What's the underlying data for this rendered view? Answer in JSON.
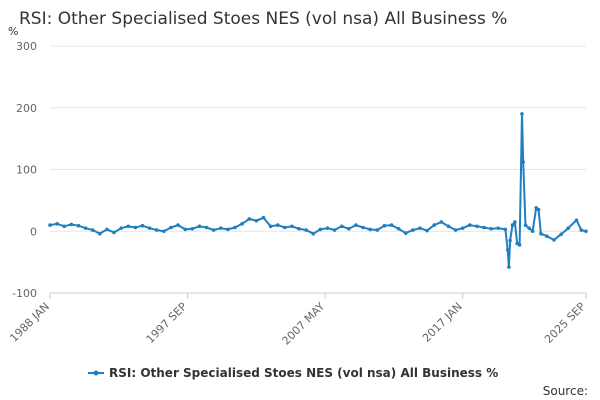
{
  "chart_data": {
    "type": "line",
    "title": "RSI: Other Specialised Stoes NES (vol nsa) All Business %",
    "unit_label": "%",
    "xlabel": "",
    "ylabel": "",
    "ylim": [
      -100,
      300
    ],
    "y_ticks": [
      -100,
      0,
      100,
      200,
      300
    ],
    "x_tick_labels": [
      "1988 JAN",
      "1997 SEP",
      "2007 MAY",
      "2017 JAN",
      "2025 SEP"
    ],
    "x_range": [
      "1988 JAN",
      "2025 SEP"
    ],
    "grid": "horizontal",
    "legend_position": "bottom",
    "series_color": "#1f7fbf",
    "source_text": "Source:",
    "series": [
      {
        "name": "RSI: Other Specialised Stoes NES (vol nsa) All Business %",
        "points": [
          [
            "1988 JAN",
            10
          ],
          [
            "1988 JUL",
            12
          ],
          [
            "1989 JAN",
            8
          ],
          [
            "1989 JUL",
            11
          ],
          [
            "1990 JAN",
            9
          ],
          [
            "1990 JUL",
            5
          ],
          [
            "1991 JAN",
            2
          ],
          [
            "1991 JUL",
            -4
          ],
          [
            "1992 JAN",
            3
          ],
          [
            "1992 JUL",
            -2
          ],
          [
            "1993 JAN",
            5
          ],
          [
            "1993 JUL",
            8
          ],
          [
            "1994 JAN",
            6
          ],
          [
            "1994 JUL",
            9
          ],
          [
            "1995 JAN",
            5
          ],
          [
            "1995 JUL",
            2
          ],
          [
            "1996 JAN",
            0
          ],
          [
            "1996 JUL",
            6
          ],
          [
            "1997 JAN",
            10
          ],
          [
            "1997 JUL",
            3
          ],
          [
            "1998 JAN",
            4
          ],
          [
            "1998 JUL",
            8
          ],
          [
            "1999 JAN",
            6
          ],
          [
            "1999 JUL",
            2
          ],
          [
            "2000 JAN",
            5
          ],
          [
            "2000 JUL",
            3
          ],
          [
            "2001 JAN",
            6
          ],
          [
            "2001 JUL",
            12
          ],
          [
            "2002 JAN",
            20
          ],
          [
            "2002 JUL",
            17
          ],
          [
            "2003 JAN",
            22
          ],
          [
            "2003 JUL",
            8
          ],
          [
            "2004 JAN",
            10
          ],
          [
            "2004 JUL",
            6
          ],
          [
            "2005 JAN",
            8
          ],
          [
            "2005 JUL",
            4
          ],
          [
            "2006 JAN",
            2
          ],
          [
            "2006 JUL",
            -4
          ],
          [
            "2007 JAN",
            3
          ],
          [
            "2007 JUL",
            5
          ],
          [
            "2008 JAN",
            2
          ],
          [
            "2008 JUL",
            8
          ],
          [
            "2009 JAN",
            4
          ],
          [
            "2009 JUL",
            10
          ],
          [
            "2010 JAN",
            6
          ],
          [
            "2010 JUL",
            3
          ],
          [
            "2011 JAN",
            2
          ],
          [
            "2011 JUL",
            9
          ],
          [
            "2012 JAN",
            10
          ],
          [
            "2012 JUL",
            4
          ],
          [
            "2013 JAN",
            -3
          ],
          [
            "2013 JUL",
            2
          ],
          [
            "2014 JAN",
            5
          ],
          [
            "2014 JUL",
            1
          ],
          [
            "2015 JAN",
            10
          ],
          [
            "2015 JUL",
            15
          ],
          [
            "2016 JAN",
            8
          ],
          [
            "2016 JUL",
            2
          ],
          [
            "2017 JAN",
            5
          ],
          [
            "2017 JUL",
            10
          ],
          [
            "2018 JAN",
            8
          ],
          [
            "2018 JUL",
            6
          ],
          [
            "2019 JAN",
            4
          ],
          [
            "2019 JUL",
            5
          ],
          [
            "2020 JAN",
            3
          ],
          [
            "2020 MAR",
            -30
          ],
          [
            "2020 APR",
            -58
          ],
          [
            "2020 MAY",
            -15
          ],
          [
            "2020 JUL",
            10
          ],
          [
            "2020 SEP",
            15
          ],
          [
            "2020 NOV",
            -20
          ],
          [
            "2021 JAN",
            -22
          ],
          [
            "2021 MAR",
            190
          ],
          [
            "2021 APR",
            112
          ],
          [
            "2021 JUN",
            10
          ],
          [
            "2021 SEP",
            5
          ],
          [
            "2021 DEC",
            0
          ],
          [
            "2022 MAR",
            38
          ],
          [
            "2022 MAY",
            35
          ],
          [
            "2022 JUL",
            -4
          ],
          [
            "2022 DEC",
            -8
          ],
          [
            "2023 JUN",
            -14
          ],
          [
            "2023 DEC",
            -5
          ],
          [
            "2024 JUN",
            5
          ],
          [
            "2025 JAN",
            18
          ],
          [
            "2025 MAY",
            2
          ],
          [
            "2025 SEP",
            0
          ]
        ]
      }
    ]
  }
}
